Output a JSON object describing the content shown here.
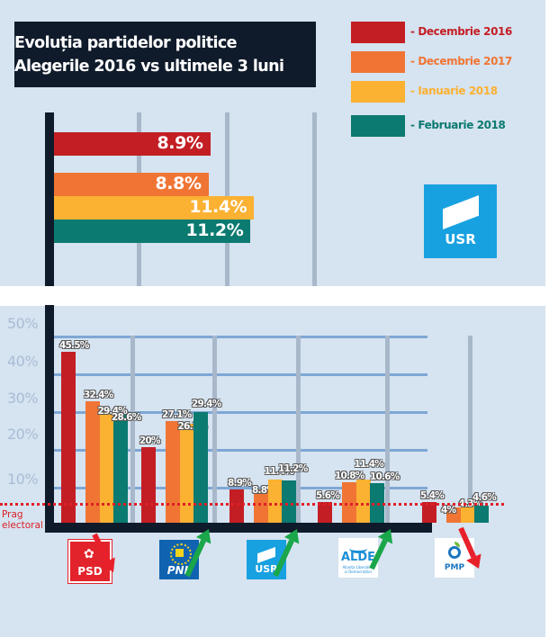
{
  "title": {
    "line1": "Evoluția partidelor politice",
    "line2": "Alegerile 2016 vs ultimele 3 luni"
  },
  "colors": {
    "dec2016": "#c41e25",
    "dec2017": "#f07535",
    "ian2018": "#fbb131",
    "feb2018": "#0b7a70",
    "axis": "#0f1b2b",
    "trend_up": "#1aa64a",
    "trend_down": "#e8202a",
    "threshold": "#e01f26"
  },
  "legend": [
    {
      "label": "- Decembrie 2016",
      "color": "#c41e25"
    },
    {
      "label": "- Decembrie 2017",
      "color": "#f07535"
    },
    {
      "label": "- Ianuarie 2018",
      "color": "#fbb131"
    },
    {
      "label": "- Februarie 2018",
      "color": "#0b7a70"
    }
  ],
  "usr_logo": {
    "text": "USR",
    "color": "#18a1e0"
  },
  "threshold": {
    "label_line1": "Prag",
    "label_line2": "electoral",
    "value": 5
  },
  "chart_data": [
    {
      "type": "bar",
      "orientation": "horizontal",
      "title": "USR",
      "categories": [
        "Decembrie 2016",
        "Decembrie 2017",
        "Ianuarie 2018",
        "Februarie 2018"
      ],
      "values": [
        8.9,
        8.8,
        11.4,
        11.2
      ],
      "labels": [
        "8.9%",
        "8.8%",
        "11.4%",
        "11.2%"
      ],
      "xlim": [
        0,
        20
      ],
      "grid": true
    },
    {
      "type": "bar",
      "orientation": "vertical",
      "title": "Evoluția partidelor politice — Alegerile 2016 vs ultimele 3 luni",
      "xlabel": "",
      "ylabel": "",
      "ylim": [
        0,
        50
      ],
      "yticks": [
        "10%",
        "20%",
        "30%",
        "40%",
        "50%"
      ],
      "ytick_values": [
        10,
        20,
        30,
        40,
        50
      ],
      "grid": true,
      "legend": "top-right",
      "categories": [
        "PSD",
        "PNL",
        "USR",
        "ALDE",
        "PMP"
      ],
      "series": [
        {
          "name": "Decembrie 2016",
          "values": [
            45.5,
            20,
            8.9,
            5.6,
            5.4
          ],
          "labels": [
            "45.5%",
            "20%",
            "8.9%",
            "5.6%",
            "5.4%"
          ]
        },
        {
          "name": "Decembrie 2017",
          "values": [
            32.4,
            27.1,
            8.8,
            10.8,
            4
          ],
          "labels": [
            "32.4%",
            "27.1%",
            "8.8%",
            "10.8%",
            "4%"
          ]
        },
        {
          "name": "Ianuarie 2018",
          "values": [
            29.4,
            26.2,
            11.4,
            11.4,
            4.3
          ],
          "labels": [
            "29.4%",
            "26.2%",
            "11.4%",
            "11.4%",
            "4.3%"
          ]
        },
        {
          "name": "Februarie 2018",
          "values": [
            28.6,
            29.4,
            11.2,
            10.6,
            4.6
          ],
          "labels": [
            "28.6%",
            "29.4%",
            "11.2%",
            "10.6%",
            "4.6%"
          ]
        }
      ],
      "trends": [
        "down",
        "up",
        "up",
        "up",
        "down"
      ],
      "annotations": [
        "Prag electoral"
      ]
    }
  ],
  "parties": [
    {
      "name": "PSD",
      "logo": "psd-rose-logo"
    },
    {
      "name": "PNL",
      "logo": "pnl-stars-logo"
    },
    {
      "name": "USR",
      "logo": "usr-flag-logo"
    },
    {
      "name": "ALDE",
      "logo": "alde-bird-logo",
      "subtitle": "Alianța Liberalilor și Democraților"
    },
    {
      "name": "PMP",
      "logo": "pmp-apple-logo"
    }
  ]
}
